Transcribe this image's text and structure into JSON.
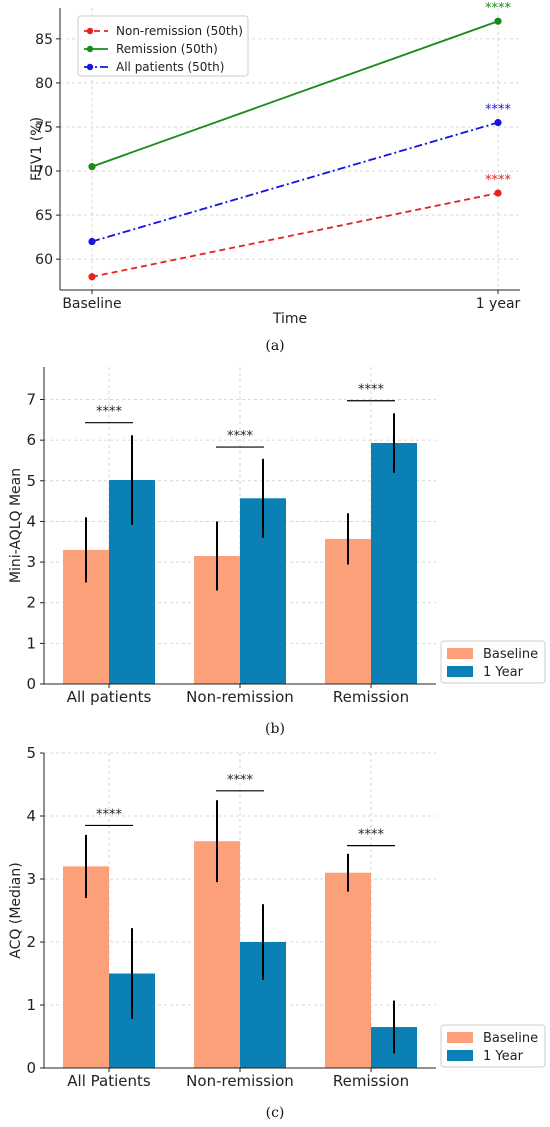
{
  "colors": {
    "nonremission": "#e8201e",
    "remission": "#1a8a1a",
    "allpatients": "#1414e0",
    "baseline": "#fca07a",
    "oneyear": "#0a80b5",
    "grid": "#cccccc"
  },
  "chart_data": [
    {
      "type": "line",
      "caption": "(a)",
      "xlabel": "Time",
      "ylabel": "FEV1 (%)",
      "categories": [
        "Baseline",
        "1 year"
      ],
      "ylim": [
        56.5,
        88.5
      ],
      "yticks": [
        60,
        65,
        70,
        75,
        80,
        85
      ],
      "grid": true,
      "legend": "top-left",
      "series": [
        {
          "name": "Non-remission (50th)",
          "values": [
            58,
            67.5
          ],
          "color": "#e8201e",
          "dash": "dashed",
          "annotation": "****"
        },
        {
          "name": "Remission (50th)",
          "values": [
            70.5,
            87
          ],
          "color": "#1a8a1a",
          "dash": "solid",
          "annotation": "****"
        },
        {
          "name": "All patients (50th)",
          "values": [
            62,
            75.5
          ],
          "color": "#1414e0",
          "dash": "dashdot",
          "annotation": "****"
        }
      ]
    },
    {
      "type": "bar",
      "caption": "(b)",
      "xlabel": "",
      "ylabel": "Mini-AQLQ Mean",
      "categories": [
        "All patients",
        "Non-remission",
        "Remission"
      ],
      "ylim": [
        0,
        7.8
      ],
      "yticks": [
        0,
        1,
        2,
        3,
        4,
        5,
        6,
        7
      ],
      "grid": true,
      "legend": "outside-bottom-right",
      "series": [
        {
          "name": "Baseline",
          "values": [
            3.3,
            3.15,
            3.57
          ],
          "err": [
            0.8,
            0.85,
            0.63
          ],
          "color": "#fca07a"
        },
        {
          "name": "1 Year",
          "values": [
            5.02,
            4.57,
            5.93
          ],
          "err": [
            1.1,
            0.97,
            0.73
          ],
          "color": "#0a80b5"
        }
      ],
      "significance": [
        "****",
        "****",
        "****"
      ],
      "sig_y": [
        6.43,
        5.83,
        6.97
      ]
    },
    {
      "type": "bar",
      "caption": "(c)",
      "xlabel": "",
      "ylabel": "ACQ (Median)",
      "categories": [
        "All Patients",
        "Non-remission",
        "Remission"
      ],
      "ylim": [
        0,
        5
      ],
      "yticks": [
        0,
        1,
        2,
        3,
        4,
        5
      ],
      "grid": true,
      "legend": "outside-bottom-right",
      "series": [
        {
          "name": "Baseline",
          "values": [
            3.2,
            3.6,
            3.1
          ],
          "err": [
            0.5,
            0.65,
            0.3
          ],
          "color": "#fca07a"
        },
        {
          "name": "1 Year",
          "values": [
            1.5,
            2.0,
            0.65
          ],
          "err": [
            0.72,
            0.6,
            0.42
          ],
          "color": "#0a80b5"
        }
      ],
      "significance": [
        "****",
        "****",
        "****"
      ],
      "sig_y": [
        3.85,
        4.4,
        3.53
      ]
    }
  ]
}
